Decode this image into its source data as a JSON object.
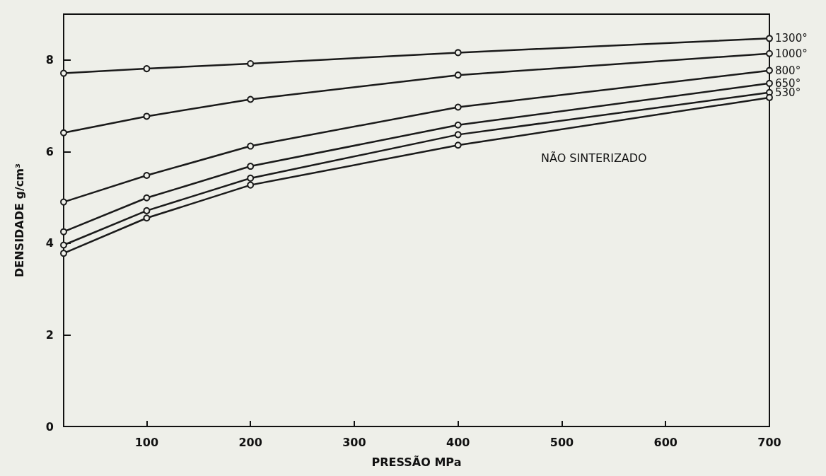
{
  "chart_data": {
    "type": "line",
    "xlabel": "PRESSÃO MPa",
    "ylabel": "DENSIDADE g/cm³",
    "x": [
      20,
      100,
      200,
      400,
      700
    ],
    "series": [
      {
        "name": "1300°",
        "color": "#1a1a1a",
        "values": [
          7.71,
          7.81,
          7.92,
          8.16,
          8.47
        ]
      },
      {
        "name": "1000°",
        "color": "#1a1a1a",
        "values": [
          6.41,
          6.77,
          7.14,
          7.67,
          8.14
        ]
      },
      {
        "name": "800°",
        "color": "#1a1a1a",
        "values": [
          4.9,
          5.48,
          6.12,
          6.97,
          7.77
        ]
      },
      {
        "name": "650°",
        "color": "#1a1a1a",
        "values": [
          4.25,
          4.99,
          5.68,
          6.58,
          7.49
        ]
      },
      {
        "name": "530°",
        "color": "#1a1a1a",
        "values": [
          3.96,
          4.71,
          5.42,
          6.37,
          7.29
        ]
      },
      {
        "color": "#1a1a1a",
        "values": [
          3.78,
          4.55,
          5.27,
          6.14,
          7.18
        ]
      }
    ],
    "annotations": [
      "NÃO SINTERIZADO"
    ],
    "xlim": [
      20,
      700
    ],
    "xticks": [
      100,
      200,
      300,
      400,
      500,
      600,
      700
    ],
    "ylim": [
      0,
      9
    ],
    "yticks": [
      0,
      2,
      4,
      6,
      8
    ],
    "grid": false,
    "legend": false,
    "marker": "circle",
    "line_style": "solid"
  }
}
